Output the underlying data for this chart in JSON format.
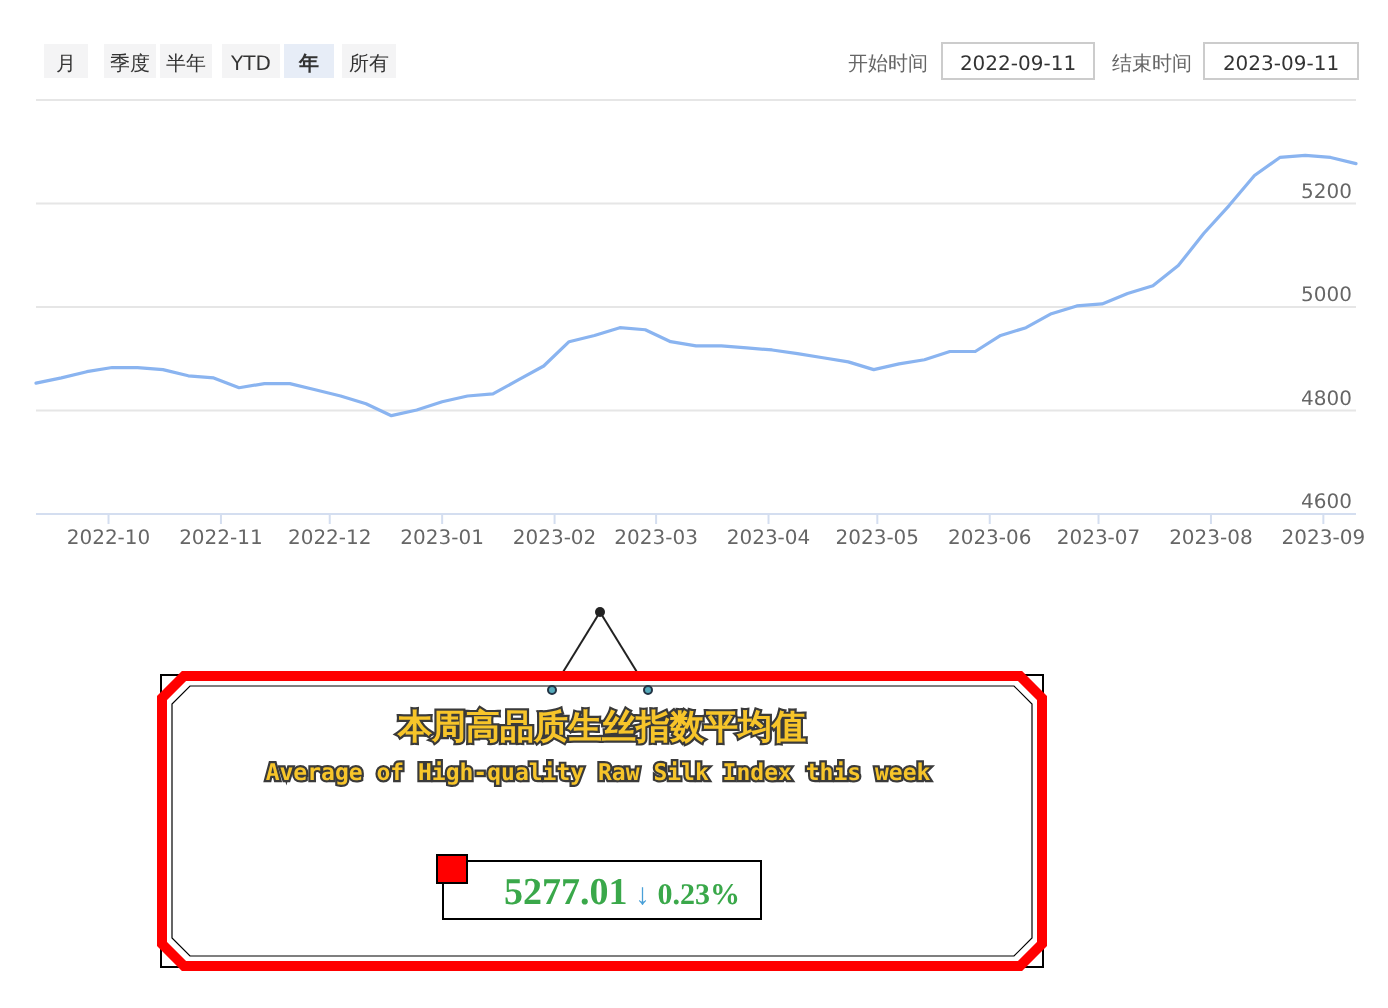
{
  "chart_data": [
    {
      "type": "line",
      "annotations": [
        "月",
        "季度",
        "半年",
        "YTD",
        "年",
        "所有",
        "开始时间",
        "2022-09-11",
        "结束时间",
        "2023-09-11"
      ],
      "x": [
        "2022-09-11",
        "2022-09-18",
        "2022-09-25",
        "2022-10-02",
        "2022-10-09",
        "2022-10-16",
        "2022-10-23",
        "2022-10-30",
        "2022-11-06",
        "2022-11-13",
        "2022-11-20",
        "2022-11-27",
        "2022-12-04",
        "2022-12-11",
        "2022-12-18",
        "2022-12-25",
        "2023-01-01",
        "2023-01-08",
        "2023-01-15",
        "2023-01-22",
        "2023-01-29",
        "2023-02-05",
        "2023-02-12",
        "2023-02-19",
        "2023-02-26",
        "2023-03-05",
        "2023-03-12",
        "2023-03-19",
        "2023-03-26",
        "2023-04-02",
        "2023-04-09",
        "2023-04-16",
        "2023-04-23",
        "2023-04-30",
        "2023-05-07",
        "2023-05-14",
        "2023-05-21",
        "2023-05-28",
        "2023-06-04",
        "2023-06-11",
        "2023-06-18",
        "2023-06-25",
        "2023-07-02",
        "2023-07-09",
        "2023-07-16",
        "2023-07-23",
        "2023-07-30",
        "2023-08-06",
        "2023-08-13",
        "2023-08-20",
        "2023-08-27",
        "2023-09-03",
        "2023-09-10"
      ],
      "series": [
        {
          "color": "#8ab4f0",
          "values": [
            4853,
            4863,
            4875,
            4883,
            4883,
            4879,
            4867,
            4863,
            4844,
            4852,
            4852,
            4840,
            4828,
            4813,
            4790,
            4801,
            4817,
            4828,
            4832,
            4859,
            4886,
            4933,
            4945,
            4960,
            4956,
            4933,
            4925,
            4925,
            4921,
            4917,
            4910,
            4902,
            4894,
            4879,
            4890,
            4898,
            4914,
            4914,
            4945,
            4960,
            4987,
            5002,
            5006,
            5026,
            5041,
            5080,
            5142,
            5196,
            5254,
            5289,
            5293,
            5289,
            5277
          ]
        }
      ],
      "xlim": [
        "2022-09-11",
        "2023-09-10"
      ],
      "xticks": [
        {
          "value": "2022-10-01",
          "label": "2022-10"
        },
        {
          "value": "2022-11-01",
          "label": "2022-11"
        },
        {
          "value": "2022-12-01",
          "label": "2022-12"
        },
        {
          "value": "2023-01-01",
          "label": "2023-01"
        },
        {
          "value": "2023-02-01",
          "label": "2023-02"
        },
        {
          "value": "2023-03-01",
          "label": "2023-03"
        },
        {
          "value": "2023-04-01",
          "label": "2023-04"
        },
        {
          "value": "2023-05-01",
          "label": "2023-05"
        },
        {
          "value": "2023-06-01",
          "label": "2023-06"
        },
        {
          "value": "2023-07-01",
          "label": "2023-07"
        },
        {
          "value": "2023-08-01",
          "label": "2023-08"
        },
        {
          "value": "2023-09-01",
          "label": "2023-09"
        }
      ],
      "ylim": [
        4600,
        5400
      ],
      "yticks": [
        4600,
        4800,
        5000,
        5200,
        {
          "value": 5400,
          "label": null
        }
      ],
      "grid": "y",
      "marker": "none",
      "line_style": "solid"
    },
    {
      "type": "other",
      "title": "本周高品质生丝指数平均值",
      "subtitle": "Average of High-quality Raw Silk Index this week",
      "annotations": [
        "5277.01",
        "↓",
        "0.23%"
      ]
    }
  ]
}
